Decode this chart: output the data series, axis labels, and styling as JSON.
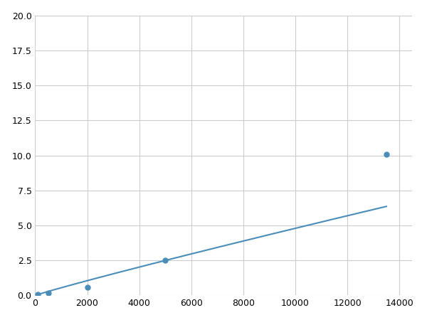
{
  "x": [
    100,
    500,
    2000,
    5000,
    13500
  ],
  "y": [
    0.1,
    0.2,
    0.6,
    2.5,
    10.1
  ],
  "line_color": "#4a8db8",
  "marker_color": "#4a8db8",
  "marker_size": 5,
  "xlim": [
    0,
    14500
  ],
  "ylim": [
    0,
    20.0
  ],
  "xticks": [
    0,
    2000,
    4000,
    6000,
    8000,
    10000,
    12000,
    14000
  ],
  "yticks": [
    0.0,
    2.5,
    5.0,
    7.5,
    10.0,
    12.5,
    15.0,
    17.5,
    20.0
  ],
  "grid_color": "#cccccc",
  "background_color": "#ffffff",
  "line_width": 1.5
}
